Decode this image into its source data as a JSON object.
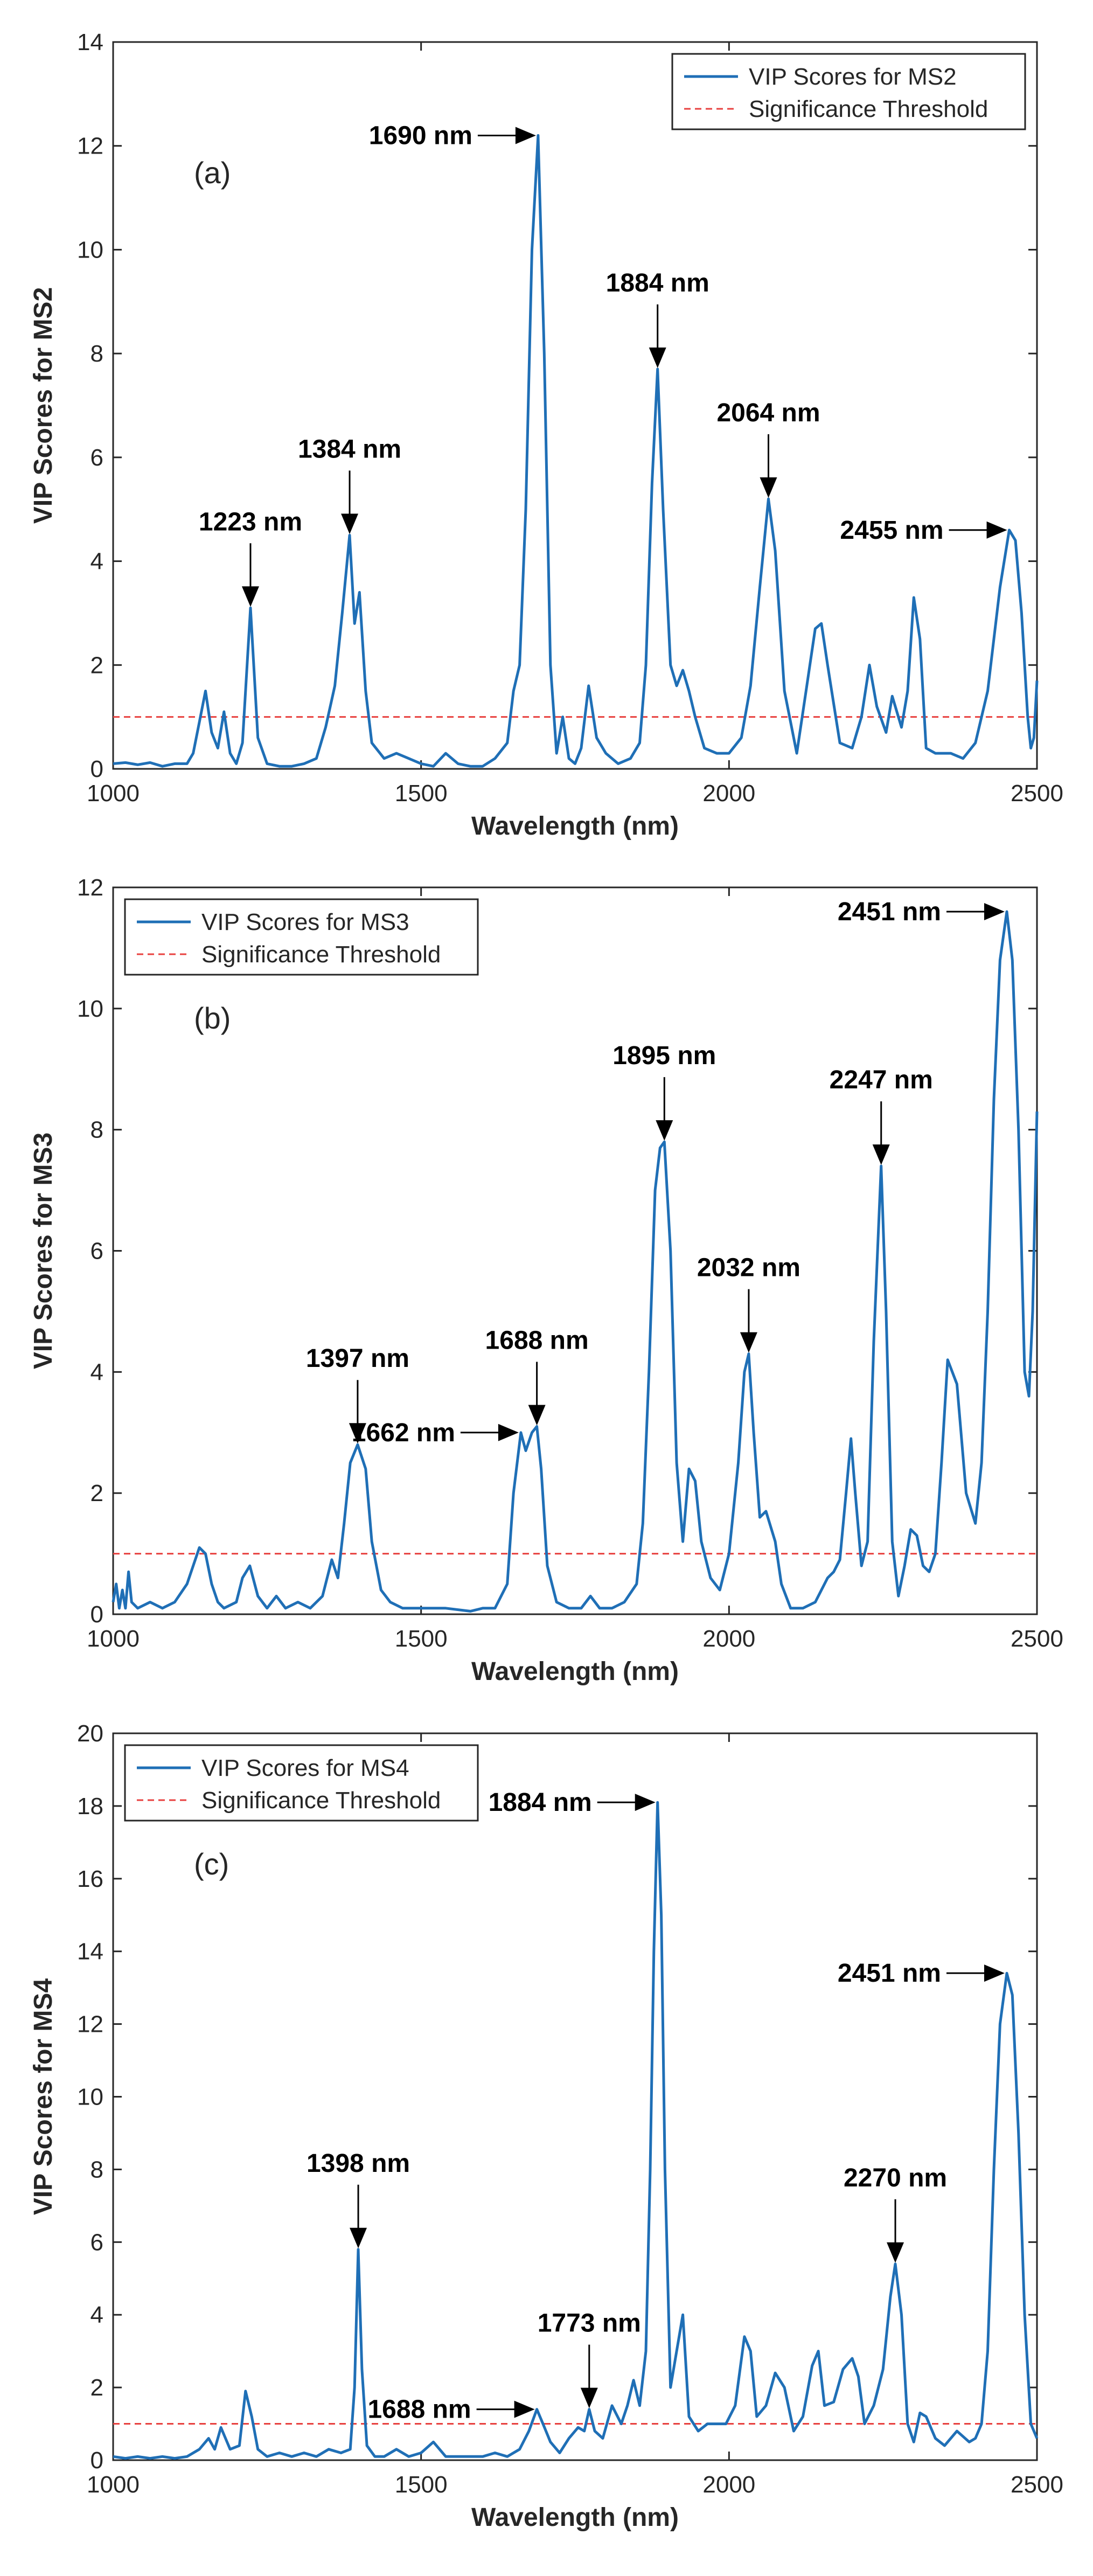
{
  "chart_data": [
    {
      "type": "line",
      "panel_label": "(a)",
      "xlabel": "Wavelength (nm)",
      "ylabel": "VIP Scores for MS2",
      "xlim": [
        1000,
        2500
      ],
      "ylim": [
        0,
        14
      ],
      "xticks": [
        1000,
        1500,
        2000,
        2500
      ],
      "yticks": [
        0,
        2,
        4,
        6,
        8,
        10,
        12,
        14
      ],
      "legend_position": "top-right",
      "legend": [
        "VIP Scores for MS2",
        "Significance Threshold"
      ],
      "threshold": 1,
      "colors": {
        "series": "#1f6fb6",
        "threshold": "#e8413f"
      },
      "series": [
        {
          "name": "VIP Scores for MS2",
          "x": [
            1000,
            1020,
            1040,
            1060,
            1080,
            1100,
            1120,
            1130,
            1140,
            1150,
            1160,
            1170,
            1180,
            1190,
            1200,
            1210,
            1223,
            1235,
            1250,
            1270,
            1290,
            1310,
            1330,
            1345,
            1360,
            1372,
            1384,
            1392,
            1400,
            1410,
            1420,
            1440,
            1460,
            1480,
            1500,
            1520,
            1540,
            1560,
            1580,
            1600,
            1620,
            1640,
            1650,
            1660,
            1670,
            1680,
            1690,
            1700,
            1710,
            1720,
            1730,
            1740,
            1750,
            1760,
            1772,
            1785,
            1800,
            1820,
            1840,
            1855,
            1865,
            1875,
            1884,
            1893,
            1905,
            1915,
            1925,
            1935,
            1945,
            1960,
            1980,
            2000,
            2020,
            2035,
            2050,
            2064,
            2075,
            2090,
            2110,
            2125,
            2140,
            2150,
            2160,
            2180,
            2200,
            2215,
            2228,
            2240,
            2255,
            2265,
            2280,
            2290,
            2300,
            2310,
            2320,
            2335,
            2360,
            2380,
            2400,
            2420,
            2440,
            2455,
            2465,
            2475,
            2485,
            2490,
            2495,
            2500
          ],
          "y": [
            0.1,
            0.12,
            0.08,
            0.12,
            0.05,
            0.1,
            0.1,
            0.3,
            0.9,
            1.5,
            0.7,
            0.4,
            1.1,
            0.3,
            0.1,
            0.5,
            3.1,
            0.6,
            0.1,
            0.05,
            0.05,
            0.1,
            0.2,
            0.8,
            1.6,
            3.0,
            4.5,
            2.8,
            3.4,
            1.5,
            0.5,
            0.2,
            0.3,
            0.2,
            0.1,
            0.05,
            0.3,
            0.1,
            0.05,
            0.05,
            0.2,
            0.5,
            1.5,
            2.0,
            5.0,
            10.0,
            12.2,
            8.0,
            2.0,
            0.3,
            1.0,
            0.2,
            0.1,
            0.4,
            1.6,
            0.6,
            0.3,
            0.1,
            0.2,
            0.5,
            2.0,
            5.5,
            7.7,
            5.0,
            2.0,
            1.6,
            1.9,
            1.5,
            1.0,
            0.4,
            0.3,
            0.3,
            0.6,
            1.6,
            3.5,
            5.2,
            4.2,
            1.5,
            0.3,
            1.5,
            2.7,
            2.8,
            2.0,
            0.5,
            0.4,
            1.0,
            2.0,
            1.2,
            0.7,
            1.4,
            0.8,
            1.5,
            3.3,
            2.5,
            0.4,
            0.3,
            0.3,
            0.2,
            0.5,
            1.5,
            3.5,
            4.6,
            4.4,
            3.0,
            1.0,
            0.4,
            0.6,
            1.7
          ]
        }
      ],
      "annotations": [
        {
          "text": "1223 nm",
          "x": 1223,
          "y": 3.1,
          "dir": "down"
        },
        {
          "text": "1384 nm",
          "x": 1384,
          "y": 4.5,
          "dir": "down"
        },
        {
          "text": "1690 nm",
          "x": 1690,
          "y": 12.2,
          "dir": "right"
        },
        {
          "text": "1884 nm",
          "x": 1884,
          "y": 7.7,
          "dir": "down"
        },
        {
          "text": "2064 nm",
          "x": 2064,
          "y": 5.2,
          "dir": "down"
        },
        {
          "text": "2455 nm",
          "x": 2455,
          "y": 4.6,
          "dir": "right"
        }
      ]
    },
    {
      "type": "line",
      "panel_label": "(b)",
      "xlabel": "Wavelength (nm)",
      "ylabel": "VIP Scores for MS3",
      "xlim": [
        1000,
        2500
      ],
      "ylim": [
        0,
        12
      ],
      "xticks": [
        1000,
        1500,
        2000,
        2500
      ],
      "yticks": [
        0,
        2,
        4,
        6,
        8,
        10,
        12
      ],
      "legend_position": "top-left",
      "legend": [
        "VIP Scores for MS3",
        "Significance Threshold"
      ],
      "threshold": 1,
      "colors": {
        "series": "#1f6fb6",
        "threshold": "#e8413f"
      },
      "series": [
        {
          "name": "VIP Scores for MS3",
          "x": [
            1000,
            1005,
            1010,
            1015,
            1020,
            1025,
            1030,
            1040,
            1060,
            1080,
            1100,
            1120,
            1140,
            1150,
            1160,
            1170,
            1180,
            1200,
            1210,
            1222,
            1235,
            1250,
            1265,
            1280,
            1300,
            1320,
            1340,
            1355,
            1365,
            1375,
            1385,
            1397,
            1410,
            1420,
            1435,
            1450,
            1470,
            1500,
            1540,
            1580,
            1600,
            1620,
            1640,
            1650,
            1662,
            1670,
            1680,
            1688,
            1695,
            1705,
            1720,
            1740,
            1760,
            1775,
            1790,
            1810,
            1830,
            1850,
            1860,
            1870,
            1880,
            1888,
            1895,
            1905,
            1915,
            1925,
            1935,
            1945,
            1955,
            1970,
            1985,
            2000,
            2015,
            2025,
            2032,
            2040,
            2050,
            2060,
            2075,
            2085,
            2100,
            2120,
            2140,
            2160,
            2170,
            2180,
            2190,
            2198,
            2205,
            2215,
            2225,
            2235,
            2247,
            2255,
            2265,
            2275,
            2285,
            2295,
            2305,
            2315,
            2325,
            2335,
            2345,
            2355,
            2370,
            2385,
            2400,
            2410,
            2420,
            2430,
            2440,
            2451,
            2460,
            2470,
            2480,
            2487,
            2493,
            2500
          ],
          "y": [
            0.2,
            0.5,
            0.1,
            0.4,
            0.1,
            0.7,
            0.2,
            0.1,
            0.2,
            0.1,
            0.2,
            0.5,
            1.1,
            1.0,
            0.5,
            0.2,
            0.1,
            0.2,
            0.6,
            0.8,
            0.3,
            0.1,
            0.3,
            0.1,
            0.2,
            0.1,
            0.3,
            0.9,
            0.6,
            1.5,
            2.5,
            2.8,
            2.4,
            1.2,
            0.4,
            0.2,
            0.1,
            0.1,
            0.1,
            0.05,
            0.1,
            0.1,
            0.5,
            2.0,
            3.0,
            2.7,
            3.0,
            3.1,
            2.4,
            0.8,
            0.2,
            0.1,
            0.1,
            0.3,
            0.1,
            0.1,
            0.2,
            0.5,
            1.5,
            4.0,
            7.0,
            7.7,
            7.8,
            6.0,
            2.5,
            1.2,
            2.4,
            2.2,
            1.2,
            0.6,
            0.4,
            1.0,
            2.5,
            4.0,
            4.3,
            3.0,
            1.6,
            1.7,
            1.2,
            0.5,
            0.1,
            0.1,
            0.2,
            0.6,
            0.7,
            0.9,
            2.0,
            2.9,
            2.0,
            0.8,
            1.2,
            4.5,
            7.4,
            5.0,
            1.2,
            0.3,
            0.8,
            1.4,
            1.3,
            0.8,
            0.7,
            1.0,
            2.5,
            4.2,
            3.8,
            2.0,
            1.5,
            2.5,
            5.0,
            8.5,
            10.8,
            11.6,
            10.8,
            8.0,
            4.0,
            3.6,
            5.0,
            8.3
          ]
        }
      ],
      "annotations": [
        {
          "text": "1397 nm",
          "x": 1397,
          "y": 2.8,
          "dir": "down"
        },
        {
          "text": "1662 nm",
          "x": 1662,
          "y": 3.0,
          "dir": "right"
        },
        {
          "text": "1688 nm",
          "x": 1688,
          "y": 3.1,
          "dir": "down"
        },
        {
          "text": "1895 nm",
          "x": 1895,
          "y": 7.8,
          "dir": "down"
        },
        {
          "text": "2032 nm",
          "x": 2032,
          "y": 4.3,
          "dir": "down"
        },
        {
          "text": "2247 nm",
          "x": 2247,
          "y": 7.4,
          "dir": "down"
        },
        {
          "text": "2451 nm",
          "x": 2451,
          "y": 11.6,
          "dir": "right"
        }
      ]
    },
    {
      "type": "line",
      "panel_label": "(c)",
      "xlabel": "Wavelength (nm)",
      "ylabel": "VIP Scores for MS4",
      "xlim": [
        1000,
        2500
      ],
      "ylim": [
        0,
        20
      ],
      "xticks": [
        1000,
        1500,
        2000,
        2500
      ],
      "yticks": [
        0,
        2,
        4,
        6,
        8,
        10,
        12,
        14,
        16,
        18,
        20
      ],
      "legend_position": "top-left",
      "legend": [
        "VIP Scores for MS4",
        "Significance Threshold"
      ],
      "threshold": 1,
      "colors": {
        "series": "#1f6fb6",
        "threshold": "#e8413f"
      },
      "series": [
        {
          "name": "VIP Scores for MS4",
          "x": [
            1000,
            1020,
            1040,
            1060,
            1080,
            1100,
            1120,
            1140,
            1155,
            1165,
            1175,
            1190,
            1205,
            1215,
            1225,
            1235,
            1250,
            1270,
            1290,
            1310,
            1330,
            1350,
            1370,
            1385,
            1392,
            1398,
            1404,
            1412,
            1425,
            1440,
            1460,
            1480,
            1500,
            1520,
            1540,
            1560,
            1580,
            1600,
            1620,
            1640,
            1660,
            1675,
            1688,
            1698,
            1710,
            1725,
            1740,
            1755,
            1765,
            1773,
            1782,
            1795,
            1810,
            1825,
            1835,
            1845,
            1855,
            1865,
            1872,
            1878,
            1884,
            1890,
            1896,
            1905,
            1915,
            1925,
            1935,
            1950,
            1965,
            1980,
            1995,
            2010,
            2025,
            2035,
            2045,
            2060,
            2075,
            2090,
            2105,
            2120,
            2135,
            2145,
            2155,
            2170,
            2185,
            2200,
            2210,
            2220,
            2235,
            2250,
            2262,
            2270,
            2280,
            2290,
            2300,
            2310,
            2320,
            2335,
            2350,
            2370,
            2390,
            2400,
            2410,
            2420,
            2430,
            2440,
            2451,
            2460,
            2470,
            2480,
            2490,
            2500
          ],
          "y": [
            0.1,
            0.05,
            0.1,
            0.05,
            0.1,
            0.05,
            0.1,
            0.3,
            0.6,
            0.3,
            0.9,
            0.3,
            0.4,
            1.9,
            1.2,
            0.3,
            0.1,
            0.2,
            0.1,
            0.2,
            0.1,
            0.3,
            0.2,
            0.3,
            2.0,
            5.8,
            2.5,
            0.4,
            0.1,
            0.1,
            0.3,
            0.1,
            0.2,
            0.5,
            0.1,
            0.1,
            0.1,
            0.1,
            0.2,
            0.1,
            0.3,
            0.8,
            1.4,
            1.0,
            0.5,
            0.2,
            0.6,
            0.9,
            0.8,
            1.4,
            0.8,
            0.6,
            1.5,
            1.0,
            1.5,
            2.2,
            1.5,
            3.0,
            8.0,
            14.0,
            18.1,
            15.0,
            8.0,
            2.0,
            3.0,
            4.0,
            1.2,
            0.8,
            1.0,
            1.0,
            1.0,
            1.5,
            3.4,
            3.0,
            1.2,
            1.5,
            2.4,
            2.0,
            0.8,
            1.2,
            2.6,
            3.0,
            1.5,
            1.6,
            2.5,
            2.8,
            2.3,
            1.0,
            1.5,
            2.5,
            4.5,
            5.4,
            4.0,
            1.0,
            0.5,
            1.3,
            1.2,
            0.6,
            0.4,
            0.8,
            0.5,
            0.6,
            1.0,
            3.0,
            8.0,
            12.0,
            13.4,
            12.8,
            9.0,
            4.0,
            1.0,
            0.6
          ]
        }
      ],
      "annotations": [
        {
          "text": "1398 nm",
          "x": 1398,
          "y": 5.8,
          "dir": "down"
        },
        {
          "text": "1688 nm",
          "x": 1688,
          "y": 1.4,
          "dir": "right"
        },
        {
          "text": "1773 nm",
          "x": 1773,
          "y": 1.4,
          "dir": "down"
        },
        {
          "text": "1884 nm",
          "x": 1884,
          "y": 18.1,
          "dir": "right"
        },
        {
          "text": "2270 nm",
          "x": 2270,
          "y": 5.4,
          "dir": "down"
        },
        {
          "text": "2451 nm",
          "x": 2451,
          "y": 13.4,
          "dir": "right"
        }
      ]
    }
  ]
}
